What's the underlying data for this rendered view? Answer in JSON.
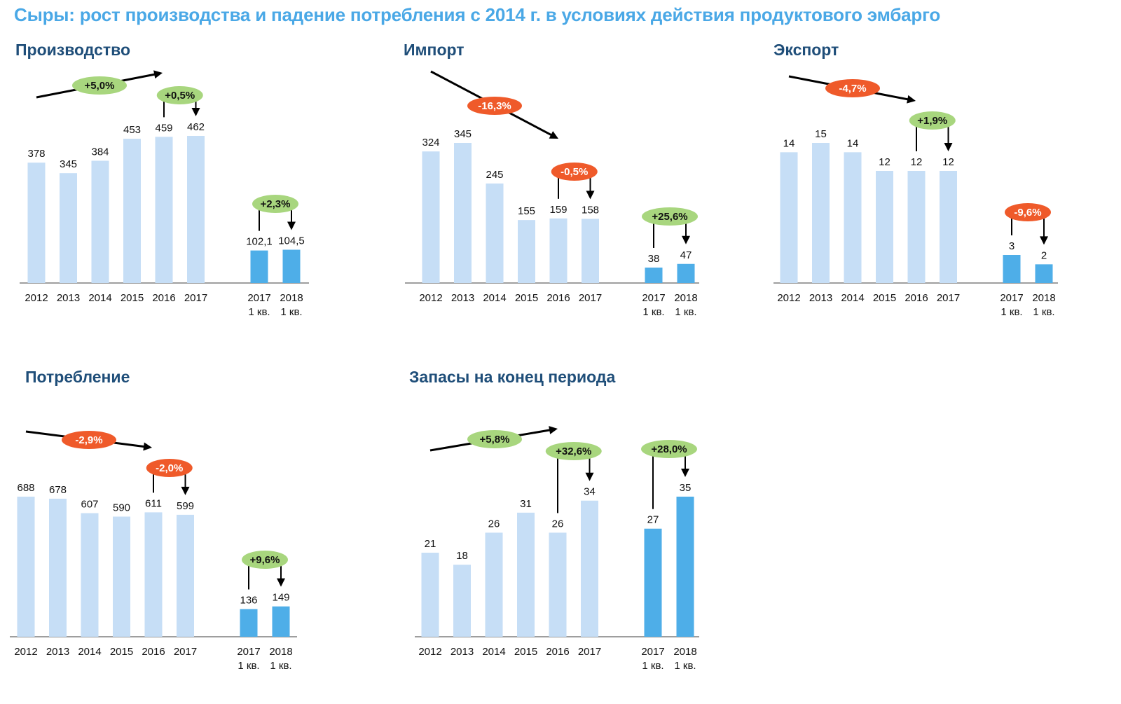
{
  "title": "Сыры: рост производства и падение потребления с 2014 г. в условиях действия продуктового эмбарго",
  "colors": {
    "title": "#4aa8e6",
    "panel_title": "#1f4e79",
    "bar_year": "#c6def6",
    "bar_quarter": "#4eaee8",
    "badge_positive": "#a8d67e",
    "badge_negative": "#ef5a2a",
    "axis": "#7f7f7f"
  },
  "chart_data": [
    {
      "type": "bar",
      "title": "Производство",
      "categories": [
        "2012",
        "2013",
        "2014",
        "2015",
        "2016",
        "2017"
      ],
      "values": [
        378,
        345,
        384,
        453,
        459,
        462
      ],
      "value_labels": [
        "378",
        "345",
        "384",
        "453",
        "459",
        "462"
      ],
      "quarter_categories": [
        [
          "2017",
          "1 кв."
        ],
        [
          "2018",
          "1 кв."
        ]
      ],
      "quarter_values": [
        102.1,
        104.5
      ],
      "quarter_value_labels": [
        "102,1",
        "104,5"
      ],
      "trend_label": "+5,0%",
      "trend_direction": "up",
      "annotations": [
        {
          "from": "2016",
          "to": "2017",
          "label": "+0,5%",
          "sign": "positive"
        },
        {
          "from": "2017 1 кв.",
          "to": "2018 1 кв.",
          "label": "+2,3%",
          "sign": "positive"
        }
      ]
    },
    {
      "type": "bar",
      "title": "Импорт",
      "categories": [
        "2012",
        "2013",
        "2014",
        "2015",
        "2016",
        "2017"
      ],
      "values": [
        324,
        345,
        245,
        155,
        159,
        158
      ],
      "value_labels": [
        "324",
        "345",
        "245",
        "155",
        "159",
        "158"
      ],
      "quarter_categories": [
        [
          "2017",
          "1 кв."
        ],
        [
          "2018",
          "1 кв."
        ]
      ],
      "quarter_values": [
        38,
        47
      ],
      "quarter_value_labels": [
        "38",
        "47"
      ],
      "trend_label": "-16,3%",
      "trend_direction": "down",
      "annotations": [
        {
          "from": "2016",
          "to": "2017",
          "label": "-0,5%",
          "sign": "negative"
        },
        {
          "from": "2017 1 кв.",
          "to": "2018 1 кв.",
          "label": "+25,6%",
          "sign": "positive"
        }
      ]
    },
    {
      "type": "bar",
      "title": "Экспорт",
      "categories": [
        "2012",
        "2013",
        "2014",
        "2015",
        "2016",
        "2017"
      ],
      "values": [
        14,
        15,
        14,
        12,
        12,
        12
      ],
      "value_labels": [
        "14",
        "15",
        "14",
        "12",
        "12",
        "12"
      ],
      "quarter_categories": [
        [
          "2017",
          "1 кв."
        ],
        [
          "2018",
          "1 кв."
        ]
      ],
      "quarter_values": [
        3,
        2
      ],
      "quarter_value_labels": [
        "3",
        "2"
      ],
      "trend_label": "-4,7%",
      "trend_direction": "down",
      "annotations": [
        {
          "from": "2016",
          "to": "2017",
          "label": "+1,9%",
          "sign": "positive"
        },
        {
          "from": "2017 1 кв.",
          "to": "2018 1 кв.",
          "label": "-9,6%",
          "sign": "negative"
        }
      ]
    },
    {
      "type": "bar",
      "title": "Потребление",
      "categories": [
        "2012",
        "2013",
        "2014",
        "2015",
        "2016",
        "2017"
      ],
      "values": [
        688,
        678,
        607,
        590,
        611,
        599
      ],
      "value_labels": [
        "688",
        "678",
        "607",
        "590",
        "611",
        "599"
      ],
      "quarter_categories": [
        [
          "2017",
          "1 кв."
        ],
        [
          "2018",
          "1 кв."
        ]
      ],
      "quarter_values": [
        136,
        149
      ],
      "quarter_value_labels": [
        "136",
        "149"
      ],
      "trend_label": "-2,9%",
      "trend_direction": "down",
      "annotations": [
        {
          "from": "2016",
          "to": "2017",
          "label": "-2,0%",
          "sign": "negative"
        },
        {
          "from": "2017 1 кв.",
          "to": "2018 1 кв.",
          "label": "+9,6%",
          "sign": "positive"
        }
      ]
    },
    {
      "type": "bar",
      "title": "Запасы на конец периода",
      "categories": [
        "2012",
        "2013",
        "2014",
        "2015",
        "2016",
        "2017"
      ],
      "values": [
        21,
        18,
        26,
        31,
        26,
        34
      ],
      "value_labels": [
        "21",
        "18",
        "26",
        "31",
        "26",
        "34"
      ],
      "quarter_categories": [
        [
          "2017",
          "1 кв."
        ],
        [
          "2018",
          "1 кв."
        ]
      ],
      "quarter_values": [
        27,
        35
      ],
      "quarter_value_labels": [
        "27",
        "35"
      ],
      "trend_label": "+5,8%",
      "trend_direction": "up",
      "annotations": [
        {
          "from": "2016",
          "to": "2017",
          "label": "+32,6%",
          "sign": "positive"
        },
        {
          "from": "2017 1 кв.",
          "to": "2018 1 кв.",
          "label": "+28,0%",
          "sign": "positive"
        }
      ]
    }
  ]
}
